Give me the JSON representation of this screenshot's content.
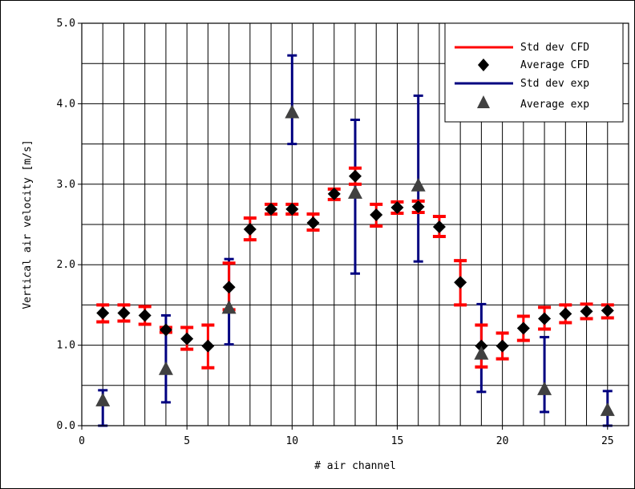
{
  "chart_data": {
    "type": "scatter",
    "title": "",
    "xlabel": "# air channel",
    "ylabel": "Vertical air velocity [m/s]",
    "xlim": [
      0,
      26
    ],
    "ylim": [
      0,
      5
    ],
    "x_ticks": [
      0,
      5,
      10,
      15,
      20,
      25
    ],
    "x_tick_labels": [
      "0",
      "5",
      "10",
      "15",
      "20",
      "25"
    ],
    "y_ticks": [
      0,
      1,
      2,
      3,
      4,
      5
    ],
    "y_tick_labels": [
      "0.0",
      "1.0",
      "2.0",
      "3.0",
      "4.0",
      "5.0"
    ],
    "grid": true,
    "legend_position": "top-right",
    "legend": [
      {
        "label": "Std dev CFD",
        "marker": "line",
        "color": "#ff0000"
      },
      {
        "label": "Average CFD",
        "marker": "diamond",
        "color": "#000000"
      },
      {
        "label": "Std dev exp",
        "marker": "line",
        "color": "#000080"
      },
      {
        "label": "Average exp",
        "marker": "triangle",
        "color": "#404040"
      }
    ],
    "cfd": [
      {
        "x": 1,
        "mean": 1.4,
        "low": 1.29,
        "high": 1.5
      },
      {
        "x": 2,
        "mean": 1.4,
        "low": 1.3,
        "high": 1.5
      },
      {
        "x": 3,
        "mean": 1.37,
        "low": 1.26,
        "high": 1.48
      },
      {
        "x": 4,
        "mean": 1.19,
        "low": 1.16,
        "high": 1.22
      },
      {
        "x": 5,
        "mean": 1.08,
        "low": 0.95,
        "high": 1.22
      },
      {
        "x": 6,
        "mean": 0.99,
        "low": 0.72,
        "high": 1.25
      },
      {
        "x": 7,
        "mean": 1.72,
        "low": 1.44,
        "high": 2.02
      },
      {
        "x": 8,
        "mean": 2.44,
        "low": 2.31,
        "high": 2.58
      },
      {
        "x": 9,
        "mean": 2.69,
        "low": 2.63,
        "high": 2.75
      },
      {
        "x": 10,
        "mean": 2.69,
        "low": 2.63,
        "high": 2.75
      },
      {
        "x": 11,
        "mean": 2.52,
        "low": 2.43,
        "high": 2.63
      },
      {
        "x": 12,
        "mean": 2.88,
        "low": 2.81,
        "high": 2.94
      },
      {
        "x": 13,
        "mean": 3.1,
        "low": 3.0,
        "high": 3.2
      },
      {
        "x": 14,
        "mean": 2.62,
        "low": 2.48,
        "high": 2.75
      },
      {
        "x": 15,
        "mean": 2.71,
        "low": 2.64,
        "high": 2.78
      },
      {
        "x": 16,
        "mean": 2.72,
        "low": 2.65,
        "high": 2.79
      },
      {
        "x": 17,
        "mean": 2.47,
        "low": 2.35,
        "high": 2.6
      },
      {
        "x": 18,
        "mean": 1.78,
        "low": 1.5,
        "high": 2.05
      },
      {
        "x": 19,
        "mean": 0.99,
        "low": 0.73,
        "high": 1.25
      },
      {
        "x": 20,
        "mean": 0.99,
        "low": 0.83,
        "high": 1.15
      },
      {
        "x": 21,
        "mean": 1.21,
        "low": 1.06,
        "high": 1.36
      },
      {
        "x": 22,
        "mean": 1.33,
        "low": 1.2,
        "high": 1.47
      },
      {
        "x": 23,
        "mean": 1.39,
        "low": 1.28,
        "high": 1.5
      },
      {
        "x": 24,
        "mean": 1.42,
        "low": 1.33,
        "high": 1.51
      },
      {
        "x": 25,
        "mean": 1.43,
        "low": 1.34,
        "high": 1.5
      }
    ],
    "exp": [
      {
        "x": 1,
        "mean": 0.32,
        "low": 0.0,
        "high": 0.44
      },
      {
        "x": 4,
        "mean": 0.71,
        "low": 0.29,
        "high": 1.37
      },
      {
        "x": 7,
        "mean": 1.47,
        "low": 1.01,
        "high": 2.07
      },
      {
        "x": 10,
        "mean": 3.9,
        "low": 3.5,
        "high": 4.6
      },
      {
        "x": 13,
        "mean": 2.9,
        "low": 1.89,
        "high": 3.8
      },
      {
        "x": 16,
        "mean": 2.99,
        "low": 2.04,
        "high": 4.1
      },
      {
        "x": 19,
        "mean": 0.9,
        "low": 0.42,
        "high": 1.51
      },
      {
        "x": 22,
        "mean": 0.46,
        "low": 0.17,
        "high": 1.1
      },
      {
        "x": 25,
        "mean": 0.2,
        "low": 0.0,
        "high": 0.43
      }
    ],
    "colors": {
      "cfd_error": "#ff0000",
      "cfd_marker": "#000000",
      "exp_error": "#000080",
      "exp_marker": "#404040",
      "grid": "#000000"
    }
  }
}
